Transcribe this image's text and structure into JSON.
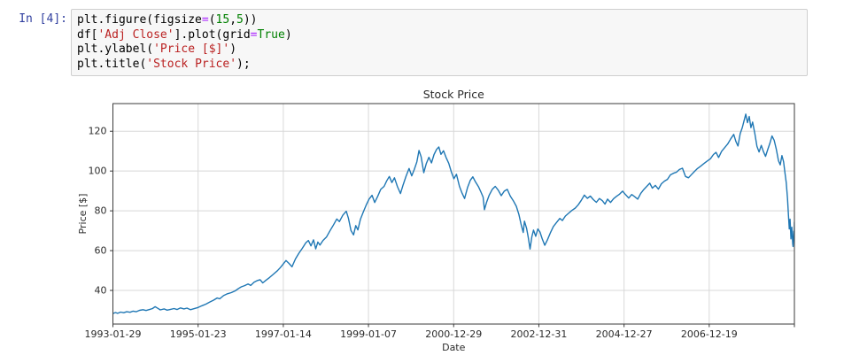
{
  "notebook": {
    "prompt": "In [4]:",
    "prompt_color": "#303F9F",
    "cell_background": "#f7f7f7",
    "cell_border_color": "#cfcfcf",
    "syntax_colors": {
      "plain": "#000000",
      "string": "#BA2121",
      "number": "#008000",
      "keyword": "#008000",
      "operator": "#AA22FF"
    },
    "code_lines": [
      [
        {
          "t": "plt.figure(figsize",
          "c": "plain"
        },
        {
          "t": "=",
          "c": "operator"
        },
        {
          "t": "(",
          "c": "plain"
        },
        {
          "t": "15",
          "c": "number"
        },
        {
          "t": ",",
          "c": "plain"
        },
        {
          "t": "5",
          "c": "number"
        },
        {
          "t": "))",
          "c": "plain"
        }
      ],
      [
        {
          "t": "df[",
          "c": "plain"
        },
        {
          "t": "'Adj Close'",
          "c": "string"
        },
        {
          "t": "].plot(grid",
          "c": "plain"
        },
        {
          "t": "=",
          "c": "operator"
        },
        {
          "t": "True",
          "c": "keyword"
        },
        {
          "t": ")",
          "c": "plain"
        }
      ],
      [
        {
          "t": "plt.ylabel(",
          "c": "plain"
        },
        {
          "t": "'Price [$]'",
          "c": "string"
        },
        {
          "t": ")",
          "c": "plain"
        }
      ],
      [
        {
          "t": "plt.title(",
          "c": "plain"
        },
        {
          "t": "'Stock Price'",
          "c": "string"
        },
        {
          "t": ");",
          "c": "plain"
        }
      ]
    ]
  },
  "chart_data": {
    "type": "line",
    "title": "Stock Price",
    "xlabel": "Date",
    "ylabel": "Price [$]",
    "grid": true,
    "legend": "none",
    "x_range": [
      1993.08,
      2008.91
    ],
    "y_range": [
      23.1,
      133.9
    ],
    "y_ticks": [
      40,
      60,
      80,
      100,
      120
    ],
    "x_ticks": [
      {
        "t": 1993.08,
        "label": "1993-01-29"
      },
      {
        "t": 1995.059,
        "label": "1995-01-23"
      },
      {
        "t": 1997.038,
        "label": "1997-01-14"
      },
      {
        "t": 1999.016,
        "label": "1999-01-07"
      },
      {
        "t": 2000.995,
        "label": "2000-12-29"
      },
      {
        "t": 2002.974,
        "label": "2002-12-31"
      },
      {
        "t": 2004.953,
        "label": "2004-12-27"
      },
      {
        "t": 2006.931,
        "label": "2006-12-19"
      },
      {
        "t": 2008.91,
        "label": ""
      }
    ],
    "colors": {
      "line": "#1f77b4",
      "grid": "#d8d8d8",
      "spine": "#3b3b3b",
      "text": "#2b2b2b"
    },
    "series": [
      {
        "name": "Adj Close",
        "points": [
          [
            1993.08,
            28.4
          ],
          [
            1993.14,
            28.9
          ],
          [
            1993.19,
            28.5
          ],
          [
            1993.26,
            29.1
          ],
          [
            1993.33,
            28.8
          ],
          [
            1993.4,
            29.3
          ],
          [
            1993.48,
            29.0
          ],
          [
            1993.55,
            29.6
          ],
          [
            1993.62,
            29.3
          ],
          [
            1993.7,
            30.0
          ],
          [
            1993.78,
            30.3
          ],
          [
            1993.85,
            29.9
          ],
          [
            1993.93,
            30.4
          ],
          [
            1994.0,
            30.9
          ],
          [
            1994.06,
            31.8
          ],
          [
            1994.12,
            31.0
          ],
          [
            1994.18,
            30.2
          ],
          [
            1994.27,
            30.7
          ],
          [
            1994.34,
            30.1
          ],
          [
            1994.42,
            30.5
          ],
          [
            1994.5,
            30.9
          ],
          [
            1994.57,
            30.4
          ],
          [
            1994.65,
            31.2
          ],
          [
            1994.73,
            30.7
          ],
          [
            1994.8,
            31.1
          ],
          [
            1994.88,
            30.3
          ],
          [
            1994.96,
            30.8
          ],
          [
            1995.06,
            31.4
          ],
          [
            1995.15,
            32.3
          ],
          [
            1995.24,
            33.1
          ],
          [
            1995.33,
            34.2
          ],
          [
            1995.42,
            35.1
          ],
          [
            1995.5,
            36.2
          ],
          [
            1995.56,
            35.8
          ],
          [
            1995.65,
            37.4
          ],
          [
            1995.74,
            38.3
          ],
          [
            1995.83,
            38.9
          ],
          [
            1995.92,
            39.8
          ],
          [
            1996.0,
            41.0
          ],
          [
            1996.06,
            41.8
          ],
          [
            1996.14,
            42.4
          ],
          [
            1996.22,
            43.2
          ],
          [
            1996.28,
            42.5
          ],
          [
            1996.36,
            44.1
          ],
          [
            1996.44,
            45.0
          ],
          [
            1996.5,
            45.4
          ],
          [
            1996.56,
            43.8
          ],
          [
            1996.64,
            45.2
          ],
          [
            1996.72,
            46.5
          ],
          [
            1996.81,
            48.2
          ],
          [
            1996.9,
            49.9
          ],
          [
            1996.97,
            51.5
          ],
          [
            1997.04,
            53.4
          ],
          [
            1997.1,
            55.0
          ],
          [
            1997.17,
            53.6
          ],
          [
            1997.24,
            51.9
          ],
          [
            1997.32,
            55.8
          ],
          [
            1997.4,
            58.7
          ],
          [
            1997.48,
            61.2
          ],
          [
            1997.56,
            63.9
          ],
          [
            1997.62,
            65.1
          ],
          [
            1997.68,
            62.4
          ],
          [
            1997.74,
            65.4
          ],
          [
            1997.79,
            60.9
          ],
          [
            1997.84,
            64.3
          ],
          [
            1997.89,
            62.8
          ],
          [
            1997.96,
            65.1
          ],
          [
            1998.04,
            66.8
          ],
          [
            1998.12,
            69.9
          ],
          [
            1998.2,
            72.8
          ],
          [
            1998.28,
            75.9
          ],
          [
            1998.34,
            74.6
          ],
          [
            1998.42,
            77.8
          ],
          [
            1998.5,
            79.8
          ],
          [
            1998.55,
            76.3
          ],
          [
            1998.61,
            70.1
          ],
          [
            1998.67,
            67.9
          ],
          [
            1998.72,
            72.6
          ],
          [
            1998.77,
            70.4
          ],
          [
            1998.83,
            75.8
          ],
          [
            1998.9,
            79.6
          ],
          [
            1998.97,
            83.2
          ],
          [
            1999.03,
            85.9
          ],
          [
            1999.1,
            87.8
          ],
          [
            1999.16,
            84.2
          ],
          [
            1999.23,
            87.3
          ],
          [
            1999.3,
            90.8
          ],
          [
            1999.38,
            92.3
          ],
          [
            1999.44,
            95.1
          ],
          [
            1999.5,
            97.3
          ],
          [
            1999.56,
            94.2
          ],
          [
            1999.62,
            96.6
          ],
          [
            1999.69,
            92.1
          ],
          [
            1999.76,
            88.7
          ],
          [
            1999.82,
            92.9
          ],
          [
            1999.89,
            97.4
          ],
          [
            1999.96,
            101.3
          ],
          [
            2000.02,
            97.6
          ],
          [
            2000.08,
            100.8
          ],
          [
            2000.14,
            104.6
          ],
          [
            2000.19,
            110.3
          ],
          [
            2000.24,
            107.2
          ],
          [
            2000.3,
            99.2
          ],
          [
            2000.36,
            103.8
          ],
          [
            2000.42,
            106.9
          ],
          [
            2000.48,
            104.1
          ],
          [
            2000.54,
            108.3
          ],
          [
            2000.6,
            110.9
          ],
          [
            2000.65,
            112.1
          ],
          [
            2000.7,
            108.4
          ],
          [
            2000.76,
            110.2
          ],
          [
            2000.82,
            106.8
          ],
          [
            2000.88,
            103.9
          ],
          [
            2000.94,
            99.6
          ],
          [
            2001.0,
            96.1
          ],
          [
            2001.06,
            98.4
          ],
          [
            2001.13,
            92.3
          ],
          [
            2001.19,
            88.9
          ],
          [
            2001.25,
            86.2
          ],
          [
            2001.32,
            91.8
          ],
          [
            2001.38,
            95.3
          ],
          [
            2001.44,
            97.1
          ],
          [
            2001.5,
            94.6
          ],
          [
            2001.57,
            92.2
          ],
          [
            2001.63,
            89.4
          ],
          [
            2001.68,
            86.9
          ],
          [
            2001.71,
            80.6
          ],
          [
            2001.76,
            84.3
          ],
          [
            2001.82,
            87.9
          ],
          [
            2001.89,
            90.8
          ],
          [
            2001.96,
            92.3
          ],
          [
            2002.03,
            90.4
          ],
          [
            2002.1,
            87.6
          ],
          [
            2002.17,
            89.9
          ],
          [
            2002.24,
            90.8
          ],
          [
            2002.31,
            87.4
          ],
          [
            2002.38,
            85.1
          ],
          [
            2002.45,
            82.3
          ],
          [
            2002.51,
            78.2
          ],
          [
            2002.56,
            73.4
          ],
          [
            2002.61,
            69.1
          ],
          [
            2002.64,
            74.8
          ],
          [
            2002.69,
            71.2
          ],
          [
            2002.73,
            66.3
          ],
          [
            2002.77,
            60.8
          ],
          [
            2002.81,
            66.9
          ],
          [
            2002.85,
            70.3
          ],
          [
            2002.9,
            67.2
          ],
          [
            2002.95,
            70.9
          ],
          [
            2003.0,
            69.4
          ],
          [
            2003.05,
            66.1
          ],
          [
            2003.11,
            62.7
          ],
          [
            2003.17,
            65.3
          ],
          [
            2003.24,
            68.9
          ],
          [
            2003.31,
            72.1
          ],
          [
            2003.39,
            74.3
          ],
          [
            2003.46,
            76.2
          ],
          [
            2003.52,
            75.1
          ],
          [
            2003.59,
            77.4
          ],
          [
            2003.67,
            78.9
          ],
          [
            2003.74,
            80.2
          ],
          [
            2003.82,
            81.4
          ],
          [
            2003.89,
            83.1
          ],
          [
            2003.96,
            85.3
          ],
          [
            2004.03,
            87.9
          ],
          [
            2004.1,
            86.3
          ],
          [
            2004.17,
            87.4
          ],
          [
            2004.24,
            85.6
          ],
          [
            2004.31,
            84.3
          ],
          [
            2004.38,
            86.2
          ],
          [
            2004.45,
            85.1
          ],
          [
            2004.51,
            83.4
          ],
          [
            2004.57,
            85.9
          ],
          [
            2004.64,
            84.2
          ],
          [
            2004.71,
            86.1
          ],
          [
            2004.78,
            87.3
          ],
          [
            2004.85,
            88.4
          ],
          [
            2004.92,
            89.9
          ],
          [
            2004.99,
            88.1
          ],
          [
            2005.06,
            86.4
          ],
          [
            2005.13,
            88.2
          ],
          [
            2005.2,
            87.1
          ],
          [
            2005.27,
            85.9
          ],
          [
            2005.34,
            88.8
          ],
          [
            2005.41,
            90.7
          ],
          [
            2005.48,
            92.3
          ],
          [
            2005.55,
            93.9
          ],
          [
            2005.61,
            91.4
          ],
          [
            2005.68,
            92.8
          ],
          [
            2005.75,
            90.9
          ],
          [
            2005.82,
            93.6
          ],
          [
            2005.89,
            94.9
          ],
          [
            2005.96,
            95.8
          ],
          [
            2006.03,
            98.1
          ],
          [
            2006.1,
            98.9
          ],
          [
            2006.17,
            99.4
          ],
          [
            2006.24,
            100.8
          ],
          [
            2006.31,
            101.4
          ],
          [
            2006.38,
            97.3
          ],
          [
            2006.45,
            96.6
          ],
          [
            2006.52,
            98.2
          ],
          [
            2006.59,
            99.8
          ],
          [
            2006.66,
            101.3
          ],
          [
            2006.73,
            102.4
          ],
          [
            2006.8,
            103.6
          ],
          [
            2006.87,
            104.8
          ],
          [
            2006.96,
            106.2
          ],
          [
            2007.03,
            108.3
          ],
          [
            2007.09,
            109.4
          ],
          [
            2007.15,
            106.8
          ],
          [
            2007.22,
            109.9
          ],
          [
            2007.29,
            111.8
          ],
          [
            2007.36,
            113.6
          ],
          [
            2007.43,
            116.2
          ],
          [
            2007.5,
            118.4
          ],
          [
            2007.55,
            114.9
          ],
          [
            2007.6,
            112.6
          ],
          [
            2007.65,
            118.8
          ],
          [
            2007.7,
            121.9
          ],
          [
            2007.74,
            125.2
          ],
          [
            2007.78,
            128.6
          ],
          [
            2007.82,
            124.3
          ],
          [
            2007.86,
            127.4
          ],
          [
            2007.9,
            121.8
          ],
          [
            2007.94,
            124.6
          ],
          [
            2007.99,
            118.9
          ],
          [
            2008.04,
            112.4
          ],
          [
            2008.09,
            109.6
          ],
          [
            2008.14,
            112.9
          ],
          [
            2008.19,
            109.8
          ],
          [
            2008.24,
            107.4
          ],
          [
            2008.29,
            110.8
          ],
          [
            2008.34,
            113.9
          ],
          [
            2008.39,
            117.6
          ],
          [
            2008.44,
            115.4
          ],
          [
            2008.49,
            110.9
          ],
          [
            2008.54,
            105.2
          ],
          [
            2008.58,
            103.1
          ],
          [
            2008.62,
            107.8
          ],
          [
            2008.66,
            104.6
          ],
          [
            2008.69,
            99.2
          ],
          [
            2008.72,
            94.1
          ],
          [
            2008.75,
            86.3
          ],
          [
            2008.77,
            78.4
          ],
          [
            2008.79,
            70.9
          ],
          [
            2008.81,
            75.8
          ],
          [
            2008.83,
            65.9
          ],
          [
            2008.85,
            71.8
          ],
          [
            2008.87,
            63.4
          ],
          [
            2008.88,
            62.1
          ],
          [
            2008.895,
            69.8
          ],
          [
            2008.903,
            66.9
          ],
          [
            2008.91,
            74.3
          ]
        ]
      }
    ]
  }
}
